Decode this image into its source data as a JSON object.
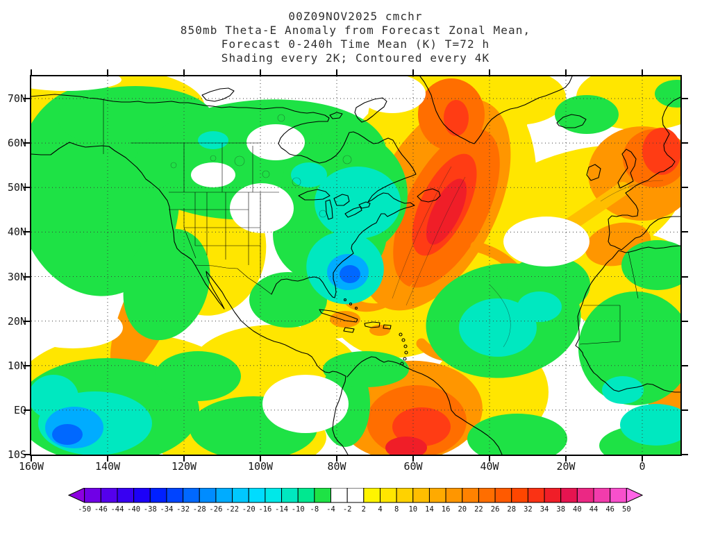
{
  "header": {
    "line1": "00Z09NOV2025 cmchr",
    "line2": "850mb Theta-E Anomaly from Forecast Zonal Mean,",
    "line3": "Forecast 0-240h Time Mean (K) T=72 h",
    "line4": "Shading every 2K; Contoured every 4K"
  },
  "chart_data": {
    "type": "heatmap",
    "title": "850mb Theta-E Anomaly from Forecast Zonal Mean",
    "subtitle": "Forecast 0-240h Time Mean (K) T=72 h",
    "shading_note": "Shading every 2K; Contoured every 4K",
    "init_time": "00Z09NOV2025",
    "source": "cmchr",
    "units": "K",
    "map_extent": {
      "lon_min": -160,
      "lon_max": 10,
      "lat_min": -10,
      "lat_max": 75
    },
    "x_axis": {
      "ticks": [
        {
          "label": "160W",
          "value": -160
        },
        {
          "label": "140W",
          "value": -140
        },
        {
          "label": "120W",
          "value": -120
        },
        {
          "label": "100W",
          "value": -100
        },
        {
          "label": "80W",
          "value": -80
        },
        {
          "label": "60W",
          "value": -60
        },
        {
          "label": "40W",
          "value": -40
        },
        {
          "label": "20W",
          "value": -20
        },
        {
          "label": "0",
          "value": 0
        }
      ]
    },
    "y_axis": {
      "ticks": [
        {
          "label": "70N",
          "value": 70
        },
        {
          "label": "60N",
          "value": 60
        },
        {
          "label": "50N",
          "value": 50
        },
        {
          "label": "40N",
          "value": 40
        },
        {
          "label": "30N",
          "value": 30
        },
        {
          "label": "20N",
          "value": 20
        },
        {
          "label": "10N",
          "value": 10
        },
        {
          "label": "EQ",
          "value": 0
        },
        {
          "label": "10S",
          "value": -10
        }
      ]
    },
    "colorbar": {
      "levels": [
        -50,
        -46,
        -44,
        -40,
        -38,
        -34,
        -32,
        -28,
        -26,
        -22,
        -20,
        -16,
        -14,
        -10,
        -8,
        -4,
        -2,
        2,
        4,
        8,
        10,
        14,
        16,
        20,
        22,
        26,
        28,
        32,
        34,
        38,
        40,
        44,
        46,
        50
      ],
      "colors": [
        "#8C00E0",
        "#7000E6",
        "#5400EC",
        "#3800F2",
        "#1C00F8",
        "#0020FF",
        "#0044FF",
        "#0068FF",
        "#008CFF",
        "#00ACFF",
        "#00C8FF",
        "#00DCFF",
        "#00E8E8",
        "#00E8C0",
        "#00E890",
        "#1EE245",
        "#FFFFFF",
        "#FFFFFF",
        "#FFF400",
        "#FFE600",
        "#FFD200",
        "#FFBE00",
        "#FFAA00",
        "#FF9600",
        "#FF8200",
        "#FF6E00",
        "#FF5A00",
        "#FF4600",
        "#FA3214",
        "#F01E28",
        "#E61450",
        "#EB2884",
        "#F23CAC",
        "#F850CC",
        "#FF64E6"
      ]
    }
  }
}
